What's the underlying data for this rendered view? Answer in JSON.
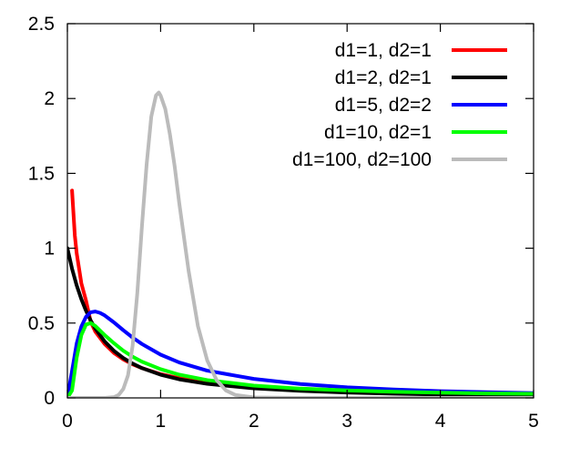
{
  "chart_data": {
    "type": "line",
    "title": "",
    "xlabel": "",
    "ylabel": "",
    "xlim": [
      0,
      5
    ],
    "ylim": [
      0,
      2.5
    ],
    "grid": false,
    "legend_position": "top-right",
    "x_ticks": [
      {
        "value": 0,
        "label": "0"
      },
      {
        "value": 1,
        "label": "1"
      },
      {
        "value": 2,
        "label": "2"
      },
      {
        "value": 3,
        "label": "3"
      },
      {
        "value": 4,
        "label": "4"
      },
      {
        "value": 5,
        "label": "5"
      }
    ],
    "y_ticks": [
      {
        "value": 0,
        "label": "0"
      },
      {
        "value": 0.5,
        "label": "0.5"
      },
      {
        "value": 1,
        "label": "1"
      },
      {
        "value": 1.5,
        "label": "1.5"
      },
      {
        "value": 2,
        "label": "2"
      },
      {
        "value": 2.5,
        "label": "2.5"
      }
    ],
    "series": [
      {
        "name": "d1=1, d2=1",
        "color": "#ff0000",
        "x": [
          0.05,
          0.08,
          0.1,
          0.15,
          0.2,
          0.25,
          0.3,
          0.4,
          0.5,
          0.6,
          0.7,
          0.8,
          1.0,
          1.2,
          1.5,
          2.0,
          2.5,
          3.0,
          3.5,
          4.0,
          4.5,
          5.0
        ],
        "values": [
          1.385,
          1.084,
          0.965,
          0.765,
          0.65,
          0.509,
          0.442,
          0.36,
          0.3,
          0.257,
          0.224,
          0.199,
          0.159,
          0.132,
          0.104,
          0.075,
          0.058,
          0.046,
          0.038,
          0.032,
          0.027,
          0.024
        ]
      },
      {
        "name": "d1=2, d2=1",
        "color": "#000000",
        "x": [
          0,
          0.05,
          0.1,
          0.15,
          0.2,
          0.25,
          0.3,
          0.4,
          0.5,
          0.6,
          0.7,
          0.8,
          1.0,
          1.2,
          1.5,
          2.0,
          2.5,
          3.0,
          3.5,
          4.0,
          4.5,
          5.0
        ],
        "values": [
          1.0,
          0.863,
          0.751,
          0.659,
          0.582,
          0.517,
          0.463,
          0.377,
          0.314,
          0.266,
          0.229,
          0.199,
          0.155,
          0.124,
          0.094,
          0.064,
          0.047,
          0.036,
          0.028,
          0.023,
          0.019,
          0.016
        ]
      },
      {
        "name": "d1=5, d2=2",
        "color": "#0000ff",
        "x": [
          0,
          0.05,
          0.1,
          0.15,
          0.2,
          0.25,
          0.3,
          0.35,
          0.4,
          0.5,
          0.6,
          0.7,
          0.8,
          1.0,
          1.2,
          1.5,
          2.0,
          2.5,
          3.0,
          3.5,
          4.0,
          4.5,
          5.0
        ],
        "values": [
          0,
          0.18,
          0.364,
          0.477,
          0.542,
          0.572,
          0.577,
          0.568,
          0.551,
          0.504,
          0.452,
          0.403,
          0.36,
          0.289,
          0.237,
          0.182,
          0.127,
          0.093,
          0.071,
          0.056,
          0.045,
          0.038,
          0.032
        ]
      },
      {
        "name": "d1=10, d2=1",
        "color": "#00ff00",
        "x": [
          0,
          0.05,
          0.1,
          0.15,
          0.2,
          0.25,
          0.3,
          0.4,
          0.5,
          0.6,
          0.7,
          0.8,
          1.0,
          1.2,
          1.5,
          2.0,
          2.5,
          3.0,
          3.5,
          4.0,
          4.5,
          5.0
        ],
        "values": [
          0,
          0.05,
          0.27,
          0.42,
          0.49,
          0.5,
          0.48,
          0.42,
          0.365,
          0.315,
          0.275,
          0.242,
          0.192,
          0.155,
          0.119,
          0.082,
          0.062,
          0.05,
          0.041,
          0.035,
          0.03,
          0.027
        ]
      },
      {
        "name": "d1=100, d2=100",
        "color": "#bbbbbb",
        "x": [
          0,
          0.4,
          0.5,
          0.55,
          0.6,
          0.65,
          0.7,
          0.75,
          0.8,
          0.85,
          0.9,
          0.95,
          0.98,
          1.0,
          1.05,
          1.1,
          1.15,
          1.2,
          1.3,
          1.4,
          1.5,
          1.6,
          1.7,
          1.8,
          2.0,
          2.5,
          3.0,
          3.5,
          4.0,
          4.5,
          5.0
        ],
        "values": [
          0,
          0,
          0.005,
          0.02,
          0.06,
          0.15,
          0.35,
          0.7,
          1.15,
          1.56,
          1.88,
          2.02,
          2.04,
          2.02,
          1.93,
          1.76,
          1.55,
          1.3,
          0.85,
          0.48,
          0.25,
          0.12,
          0.05,
          0.02,
          0.003,
          0,
          0,
          0,
          0,
          0,
          0
        ]
      }
    ]
  }
}
